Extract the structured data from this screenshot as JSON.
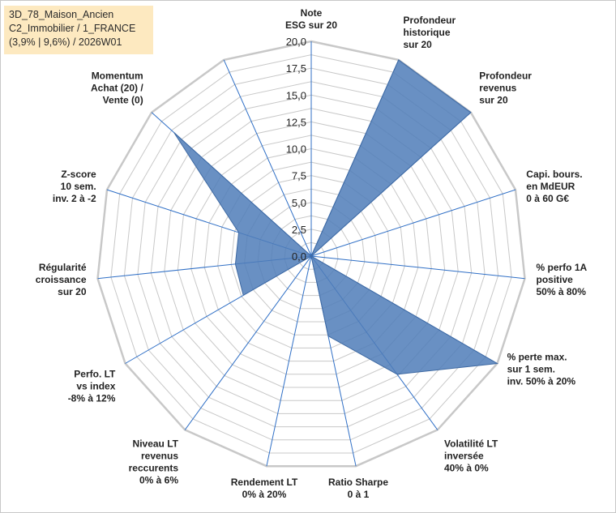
{
  "header": {
    "lines": [
      "3D_78_Maison_Ancien",
      "C2_Immobilier / 1_FRANCE",
      "(3,9% | 9,6%) / 2026W01"
    ]
  },
  "colors": {
    "fill": "#4f7db8",
    "stroke": "#3f6aa3",
    "grid": "#c8c8c8",
    "axis": "#2f6fc6",
    "title_bg": "#fde9c0"
  },
  "chart_data": {
    "type": "radar",
    "rmin": 0,
    "rmax": 20,
    "ticks": [
      "0,0",
      "2,5",
      "5,0",
      "7,5",
      "10,0",
      "12,5",
      "15,0",
      "17,5",
      "20,0"
    ],
    "grid": true,
    "axes": [
      {
        "lines": [
          "Note",
          "ESG sur 20"
        ],
        "value": 0
      },
      {
        "lines": [
          "Profondeur",
          "historique",
          "sur 20"
        ],
        "value": 20
      },
      {
        "lines": [
          "Profondeur",
          "revenus",
          "sur 20"
        ],
        "value": 20
      },
      {
        "lines": [
          "Capi. bours.",
          "en MdEUR",
          "0 à 60 G€"
        ],
        "value": 0
      },
      {
        "lines": [
          "% perfo 1A",
          "positive",
          "50% à 80%"
        ],
        "value": 0
      },
      {
        "lines": [
          "% perte max.",
          "sur 1 sem.",
          "inv. 50% à 20%"
        ],
        "value": 20
      },
      {
        "lines": [
          "Volatilité LT",
          "inversée",
          "40% à 0%"
        ],
        "value": 13.6
      },
      {
        "lines": [
          "Ratio Sharpe",
          "0 à 1"
        ],
        "value": 7.6
      },
      {
        "lines": [
          "Rendement LT",
          "0% à 20%"
        ],
        "value": 0
      },
      {
        "lines": [
          "Niveau LT",
          "revenus",
          "reccurents",
          "0% à 6%"
        ],
        "value": 0
      },
      {
        "lines": [
          "Perfo. LT",
          "vs index",
          "-8% à 12%"
        ],
        "value": 7.3
      },
      {
        "lines": [
          "Régularité",
          "croissance",
          "sur 20"
        ],
        "value": 7.1
      },
      {
        "lines": [
          "Z-score",
          "10 sem.",
          "inv. 2 à -2"
        ],
        "value": 7.1
      },
      {
        "lines": [
          "Momentum",
          "Achat (20) /",
          "Vente (0)"
        ],
        "value": 17.2
      },
      {
        "lines": [],
        "value": 0
      }
    ]
  }
}
